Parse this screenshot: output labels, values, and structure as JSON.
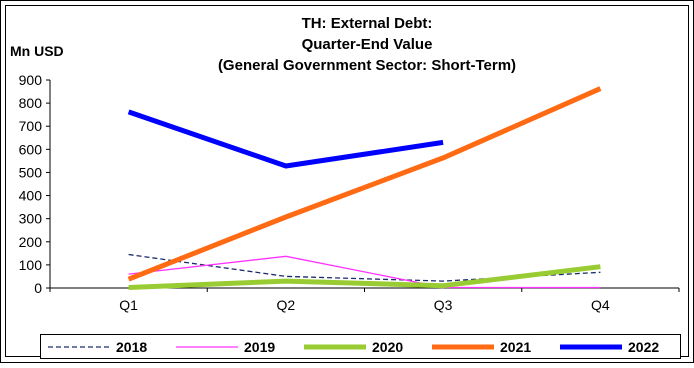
{
  "chart_data": {
    "type": "line",
    "title_lines": [
      "TH: External Debt:",
      "Quarter-End Value",
      "(General Government Sector: Short-Term)"
    ],
    "ylabel": "Mn USD",
    "xlabel": "",
    "categories": [
      "Q1",
      "Q2",
      "Q3",
      "Q4"
    ],
    "ylim": [
      0,
      900
    ],
    "yticks": [
      "0",
      "100",
      "200",
      "300",
      "400",
      "500",
      "600",
      "700",
      "800",
      "900"
    ],
    "grid": false,
    "legend_position": "bottom",
    "series": [
      {
        "name": "2018",
        "values": [
          145,
          50,
          30,
          68
        ],
        "color": "#1a2a6c",
        "dash": "dashed",
        "width": "thin"
      },
      {
        "name": "2019",
        "values": [
          60,
          137,
          2,
          2
        ],
        "color": "#ff33ff",
        "dash": "solid",
        "width": "thin"
      },
      {
        "name": "2020",
        "values": [
          2,
          30,
          10,
          92
        ],
        "color": "#99cc33",
        "dash": "solid",
        "width": "thick"
      },
      {
        "name": "2021",
        "values": [
          38,
          307,
          563,
          863
        ],
        "color": "#ff6a13",
        "dash": "solid",
        "width": "thick"
      },
      {
        "name": "2022",
        "values": [
          762,
          528,
          630,
          null
        ],
        "color": "#0000ff",
        "dash": "solid",
        "width": "thick"
      }
    ]
  }
}
